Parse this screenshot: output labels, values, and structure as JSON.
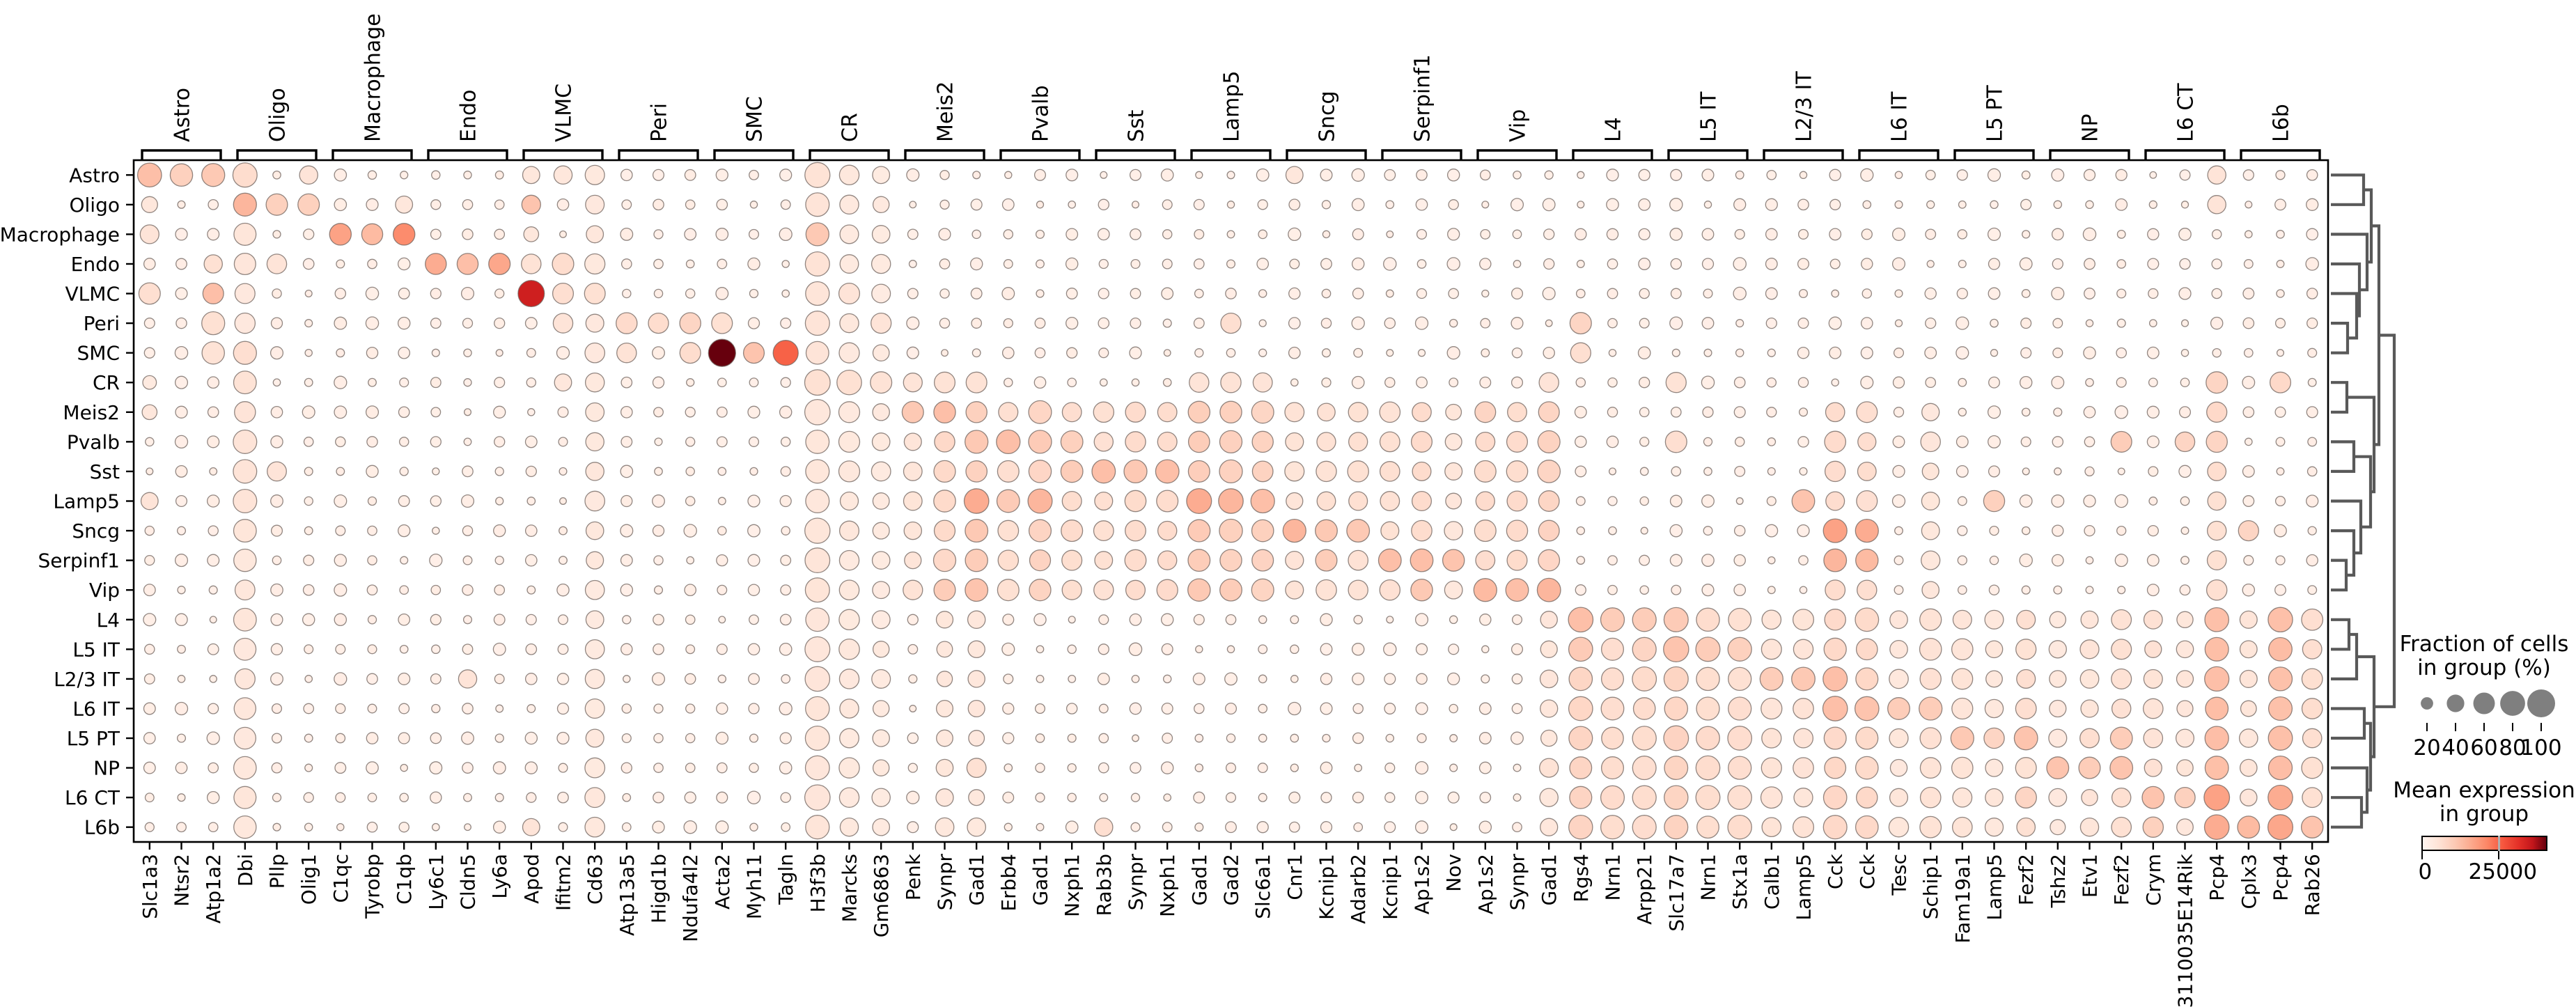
{
  "chart_data": {
    "type": "heatmap",
    "subtype": "dotplot (dot size = fraction of cells, dot color = mean expression)",
    "rows": [
      "Astro",
      "Oligo",
      "Macrophage",
      "Endo",
      "VLMC",
      "Peri",
      "SMC",
      "CR",
      "Meis2",
      "Pvalb",
      "Sst",
      "Lamp5",
      "Sncg",
      "Serpinf1",
      "Vip",
      "L4",
      "L5 IT",
      "L2/3 IT",
      "L6 IT",
      "L5 PT",
      "NP",
      "L6 CT",
      "L6b"
    ],
    "genes": [
      "Slc1a3",
      "Ntsr2",
      "Atp1a2",
      "Dbi",
      "Pllp",
      "Olig1",
      "C1qc",
      "Tyrobp",
      "C1qb",
      "Ly6c1",
      "Cldn5",
      "Ly6a",
      "Apod",
      "Ifitm2",
      "Cd63",
      "Atp13a5",
      "Higd1b",
      "Ndufa4l2",
      "Acta2",
      "Myh11",
      "Tagln",
      "H3f3b",
      "Marcks",
      "Gm6863",
      "Penk",
      "Synpr",
      "Gad1",
      "Erbb4",
      "Gad1",
      "Nxph1",
      "Rab3b",
      "Synpr",
      "Nxph1",
      "Gad1",
      "Gad2",
      "Slc6a1",
      "Cnr1",
      "Kcnip1",
      "Adarb2",
      "Kcnip1",
      "Ap1s2",
      "Nov",
      "Ap1s2",
      "Synpr",
      "Gad1",
      "Rgs4",
      "Nrn1",
      "Arpp21",
      "Slc17a7",
      "Nrn1",
      "Stx1a",
      "Calb1",
      "Lamp5",
      "Cck",
      "Cck",
      "Tesc",
      "Schip1",
      "Fam19a1",
      "Lamp5",
      "Fezf2",
      "Tshz2",
      "Etv1",
      "Fezf2",
      "Crym",
      "3110035E14Rik",
      "Pcp4",
      "Cplx3",
      "Pcp4",
      "Rab26"
    ],
    "column_groups": [
      "Astro",
      "Oligo",
      "Macrophage",
      "Endo",
      "VLMC",
      "Peri",
      "SMC",
      "CR",
      "Meis2",
      "Pvalb",
      "Sst",
      "Lamp5",
      "Sncg",
      "Serpinf1",
      "Vip",
      "L4",
      "L5 IT",
      "L2/3 IT",
      "L6 IT",
      "L5 PT",
      "NP",
      "L6 CT",
      "L6b"
    ],
    "genes_per_group": 3,
    "size_legend_values": [
      20,
      40,
      60,
      80,
      100
    ],
    "colorbar_ticks": [
      0,
      25000
    ],
    "colorbar_tick_fraction": 0.61,
    "colormap": "Reds",
    "colormap_stops": [
      [
        0,
        "#fff5f0"
      ],
      [
        0.13,
        "#fee3d6"
      ],
      [
        0.26,
        "#fdc9b4"
      ],
      [
        0.39,
        "#fcaa8e"
      ],
      [
        0.52,
        "#fc8767"
      ],
      [
        0.65,
        "#f6573e"
      ],
      [
        0.78,
        "#e32f27"
      ],
      [
        0.89,
        "#c2161b"
      ],
      [
        1,
        "#67000d"
      ]
    ],
    "matrix": {
      "default_cell": [
        14,
        0.05
      ],
      "common_columns": {
        "3": [
          62,
          0.1
        ],
        "14": [
          48,
          0.09
        ],
        "21": [
          80,
          0.11
        ],
        "22": [
          52,
          0.09
        ],
        "23": [
          42,
          0.08
        ]
      },
      "interneuron_rows": [
        "Meis2",
        "Pvalb",
        "Sst",
        "Lamp5",
        "Sncg",
        "Serpinf1",
        "Vip"
      ],
      "interneuron_cols": {
        "24": [
          45,
          0.12
        ],
        "25": [
          60,
          0.18
        ],
        "26": [
          65,
          0.22
        ],
        "27": [
          55,
          0.15
        ],
        "28": [
          65,
          0.2
        ],
        "29": [
          55,
          0.16
        ],
        "30": [
          50,
          0.14
        ],
        "31": [
          55,
          0.16
        ],
        "32": [
          55,
          0.16
        ],
        "33": [
          68,
          0.24
        ],
        "34": [
          66,
          0.22
        ],
        "35": [
          62,
          0.2
        ],
        "36": [
          45,
          0.12
        ],
        "37": [
          50,
          0.14
        ],
        "38": [
          52,
          0.14
        ],
        "39": [
          50,
          0.14
        ],
        "40": [
          55,
          0.16
        ],
        "41": [
          40,
          0.1
        ],
        "42": [
          55,
          0.16
        ],
        "43": [
          55,
          0.16
        ],
        "44": [
          62,
          0.2
        ],
        "53": [
          55,
          0.16
        ],
        "54": [
          52,
          0.15
        ],
        "56": [
          45,
          0.1
        ],
        "65": [
          50,
          0.15
        ]
      },
      "excitatory_rows": [
        "L4",
        "L5 IT",
        "L2/3 IT",
        "L6 IT",
        "L5 PT",
        "NP",
        "L6 CT",
        "L6b"
      ],
      "excitatory_cols": {
        "25": [
          40,
          0.1
        ],
        "26": [
          40,
          0.1
        ],
        "44": [
          40,
          0.1
        ],
        "45": [
          72,
          0.2
        ],
        "46": [
          70,
          0.16
        ],
        "47": [
          72,
          0.16
        ],
        "48": [
          78,
          0.2
        ],
        "49": [
          72,
          0.16
        ],
        "50": [
          70,
          0.15
        ],
        "51": [
          55,
          0.12
        ],
        "52": [
          52,
          0.12
        ],
        "53": [
          68,
          0.18
        ],
        "54": [
          66,
          0.18
        ],
        "55": [
          45,
          0.1
        ],
        "56": [
          62,
          0.13
        ],
        "57": [
          55,
          0.12
        ],
        "58": [
          42,
          0.1
        ],
        "59": [
          52,
          0.14
        ],
        "60": [
          36,
          0.09
        ],
        "61": [
          42,
          0.11
        ],
        "62": [
          52,
          0.14
        ],
        "63": [
          46,
          0.13
        ],
        "64": [
          42,
          0.11
        ],
        "65": [
          76,
          0.3
        ],
        "66": [
          40,
          0.11
        ],
        "67": [
          76,
          0.3
        ],
        "68": [
          56,
          0.15
        ]
      },
      "cells": {
        "Astro": {
          "0": [
            78,
            0.3
          ],
          "1": [
            68,
            0.22
          ],
          "2": [
            72,
            0.26
          ],
          "3": [
            80,
            0.16
          ],
          "5": [
            45,
            0.12
          ],
          "12": [
            40,
            0.1
          ],
          "13": [
            45,
            0.1
          ],
          "21": [
            85,
            0.13
          ],
          "36": [
            40,
            0.1
          ],
          "65": [
            45,
            0.12
          ]
        },
        "Oligo": {
          "0": [
            35,
            0.1
          ],
          "3": [
            72,
            0.34
          ],
          "4": [
            62,
            0.22
          ],
          "5": [
            62,
            0.22
          ],
          "8": [
            40,
            0.1
          ],
          "12": [
            48,
            0.28
          ],
          "21": [
            75,
            0.12
          ],
          "65": [
            45,
            0.12
          ]
        },
        "Macrophage": {
          "0": [
            48,
            0.12
          ],
          "6": [
            64,
            0.42
          ],
          "7": [
            60,
            0.32
          ],
          "8": [
            64,
            0.5
          ],
          "12": [
            30,
            0.1
          ],
          "14": [
            40,
            0.1
          ],
          "21": [
            72,
            0.26
          ]
        },
        "Endo": {
          "2": [
            45,
            0.14
          ],
          "4": [
            52,
            0.12
          ],
          "9": [
            60,
            0.38
          ],
          "10": [
            60,
            0.3
          ],
          "11": [
            62,
            0.4
          ],
          "12": [
            52,
            0.13
          ],
          "13": [
            62,
            0.16
          ],
          "21": [
            80,
            0.13
          ]
        },
        "VLMC": {
          "0": [
            62,
            0.15
          ],
          "2": [
            58,
            0.3
          ],
          "12": [
            94,
            0.85
          ],
          "13": [
            58,
            0.15
          ],
          "14": [
            58,
            0.14
          ],
          "22": [
            58,
            0.12
          ]
        },
        "Peri": {
          "2": [
            72,
            0.14
          ],
          "13": [
            52,
            0.12
          ],
          "15": [
            60,
            0.17
          ],
          "16": [
            55,
            0.16
          ],
          "17": [
            60,
            0.2
          ],
          "18": [
            58,
            0.14
          ],
          "21": [
            80,
            0.12
          ],
          "23": [
            55,
            0.12
          ],
          "34": [
            55,
            0.15
          ],
          "45": [
            62,
            0.2
          ]
        },
        "SMC": {
          "2": [
            68,
            0.13
          ],
          "3": [
            72,
            0.15
          ],
          "15": [
            52,
            0.13
          ],
          "17": [
            58,
            0.16
          ],
          "18": [
            100,
            1.0
          ],
          "19": [
            58,
            0.28
          ],
          "20": [
            85,
            0.62
          ],
          "21": [
            70,
            0.12
          ],
          "45": [
            55,
            0.15
          ]
        },
        "CR": {
          "0": [
            25,
            0.08
          ],
          "3": [
            70,
            0.13
          ],
          "13": [
            40,
            0.1
          ],
          "21": [
            88,
            0.14
          ],
          "22": [
            82,
            0.14
          ],
          "23": [
            62,
            0.13
          ],
          "24": [
            48,
            0.12
          ],
          "25": [
            58,
            0.13
          ],
          "26": [
            58,
            0.13
          ],
          "33": [
            52,
            0.12
          ],
          "34": [
            56,
            0.13
          ],
          "35": [
            50,
            0.12
          ],
          "44": [
            52,
            0.12
          ],
          "48": [
            55,
            0.13
          ],
          "65": [
            62,
            0.2
          ],
          "67": [
            58,
            0.18
          ]
        },
        "Meis2": {
          "0": [
            30,
            0.1
          ],
          "3": [
            60,
            0.12
          ],
          "24": [
            62,
            0.26
          ],
          "25": [
            64,
            0.3
          ],
          "26": [
            60,
            0.22
          ],
          "42": [
            58,
            0.2
          ],
          "44": [
            58,
            0.2
          ],
          "65": [
            55,
            0.18
          ]
        },
        "Pvalb": {
          "3": [
            75,
            0.12
          ],
          "26": [
            72,
            0.26
          ],
          "27": [
            76,
            0.3
          ],
          "28": [
            72,
            0.25
          ],
          "29": [
            66,
            0.22
          ],
          "48": [
            62,
            0.15
          ],
          "62": [
            58,
            0.24
          ],
          "64": [
            52,
            0.2
          ],
          "65": [
            60,
            0.2
          ]
        },
        "Sst": {
          "3": [
            75,
            0.12
          ],
          "4": [
            50,
            0.12
          ],
          "29": [
            66,
            0.24
          ],
          "30": [
            74,
            0.3
          ],
          "31": [
            72,
            0.26
          ],
          "32": [
            74,
            0.3
          ]
        },
        "Lamp5": {
          "0": [
            40,
            0.12
          ],
          "3": [
            75,
            0.12
          ],
          "26": [
            82,
            0.38
          ],
          "27": [
            70,
            0.25
          ],
          "28": [
            80,
            0.34
          ],
          "33": [
            84,
            0.38
          ],
          "34": [
            82,
            0.34
          ],
          "35": [
            76,
            0.3
          ],
          "52": [
            70,
            0.28
          ],
          "58": [
            60,
            0.22
          ]
        },
        "Sncg": {
          "26": [
            70,
            0.26
          ],
          "35": [
            65,
            0.22
          ],
          "36": [
            72,
            0.34
          ],
          "37": [
            66,
            0.26
          ],
          "38": [
            70,
            0.26
          ],
          "53": [
            76,
            0.42
          ],
          "54": [
            72,
            0.38
          ],
          "66": [
            55,
            0.2
          ]
        },
        "Serpinf1": {
          "26": [
            68,
            0.24
          ],
          "33": [
            66,
            0.24
          ],
          "37": [
            62,
            0.24
          ],
          "39": [
            70,
            0.3
          ],
          "40": [
            70,
            0.3
          ],
          "41": [
            64,
            0.28
          ],
          "53": [
            70,
            0.34
          ],
          "54": [
            68,
            0.32
          ]
        },
        "Vip": {
          "25": [
            62,
            0.24
          ],
          "26": [
            70,
            0.28
          ],
          "33": [
            68,
            0.26
          ],
          "34": [
            66,
            0.24
          ],
          "40": [
            64,
            0.26
          ],
          "42": [
            72,
            0.32
          ],
          "43": [
            70,
            0.3
          ],
          "44": [
            74,
            0.34
          ]
        },
        "L4": {
          "3": [
            70,
            0.11
          ],
          "45": [
            82,
            0.3
          ],
          "46": [
            76,
            0.24
          ],
          "47": [
            76,
            0.24
          ],
          "48": [
            80,
            0.25
          ]
        },
        "L5 IT": {
          "45": [
            78,
            0.25
          ],
          "47": [
            76,
            0.2
          ],
          "48": [
            86,
            0.28
          ],
          "49": [
            80,
            0.24
          ],
          "50": [
            76,
            0.22
          ]
        },
        "L2/3 IT": {
          "10": [
            45,
            0.12
          ],
          "51": [
            72,
            0.24
          ],
          "52": [
            74,
            0.26
          ],
          "53": [
            80,
            0.3
          ]
        },
        "L6 IT": {
          "53": [
            82,
            0.3
          ],
          "54": [
            78,
            0.28
          ],
          "55": [
            66,
            0.24
          ],
          "56": [
            72,
            0.24
          ]
        },
        "L5 PT": {
          "57": [
            72,
            0.26
          ],
          "58": [
            56,
            0.2
          ],
          "59": [
            74,
            0.28
          ],
          "61": [
            50,
            0.15
          ],
          "62": [
            66,
            0.24
          ]
        },
        "NP": {
          "26": [
            50,
            0.14
          ],
          "44": [
            48,
            0.13
          ],
          "60": [
            66,
            0.28
          ],
          "61": [
            62,
            0.24
          ],
          "62": [
            70,
            0.28
          ]
        },
        "L6 CT": {
          "59": [
            60,
            0.2
          ],
          "63": [
            66,
            0.28
          ],
          "64": [
            56,
            0.22
          ],
          "65": [
            88,
            0.42
          ],
          "67": [
            82,
            0.38
          ]
        },
        "L6b": {
          "12": [
            40,
            0.12
          ],
          "30": [
            45,
            0.15
          ],
          "63": [
            56,
            0.22
          ],
          "65": [
            82,
            0.38
          ],
          "66": [
            66,
            0.32
          ],
          "67": [
            84,
            0.4
          ],
          "68": [
            64,
            0.28
          ]
        }
      }
    },
    "dendrogram": {
      "merges": [
        [
          "Peri",
          "SMC",
          24
        ],
        [
          "VLMC",
          "@0",
          37
        ],
        [
          "Endo",
          "@1",
          41
        ],
        [
          "Macrophage",
          "@2",
          52
        ],
        [
          "Astro",
          "Oligo",
          47
        ],
        [
          "@4",
          "@3",
          58
        ],
        [
          "Serpinf1",
          "Vip",
          22
        ],
        [
          "Sncg",
          "@6",
          33
        ],
        [
          "Lamp5",
          "@7",
          43
        ],
        [
          "Pvalb",
          "Sst",
          33
        ],
        [
          "@9",
          "@8",
          57
        ],
        [
          "CR",
          "Meis2",
          23
        ],
        [
          "@11",
          "@10",
          62
        ],
        [
          "@5",
          "@12",
          69
        ],
        [
          "L4",
          "L5 IT",
          26
        ],
        [
          "L2/3 IT",
          "@14",
          37
        ],
        [
          "L6 IT",
          "L5 PT",
          48
        ],
        [
          "L6 CT",
          "L6b",
          44
        ],
        [
          "NP",
          "@17",
          52
        ],
        [
          "@16",
          "@18",
          57
        ],
        [
          "@15",
          "@19",
          62
        ],
        [
          "@13",
          "@20",
          91
        ]
      ]
    }
  },
  "legend_fraction": {
    "title_line1": "Fraction of cells",
    "title_line2": "in group (%)",
    "values": [
      "20",
      "40",
      "60",
      "80",
      "100"
    ]
  },
  "legend_expression": {
    "title_line1": "Mean expression",
    "title_line2": "in group",
    "tick_left": "0",
    "tick_right": "25000"
  },
  "colors": {
    "dot_edge": "#6e625c",
    "axis": "#000000",
    "dendrogram": "#595959",
    "legend_dot": "#7f7f7f"
  }
}
